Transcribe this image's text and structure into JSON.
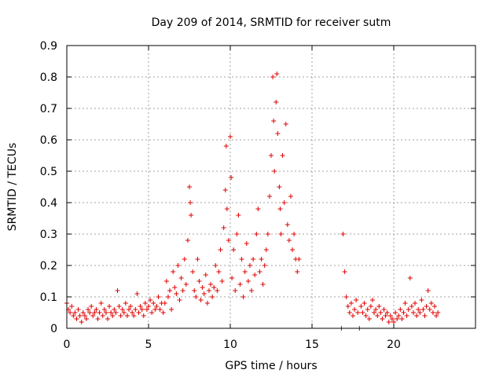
{
  "chart_data": {
    "type": "scatter",
    "title": "Day 209 of 2014, SRMTID for receiver sutm",
    "xlabel": "GPS time / hours",
    "ylabel": "SRMTID / TECUs",
    "xlim": [
      0,
      25
    ],
    "ylim": [
      0,
      0.9
    ],
    "xticks": [
      0,
      5,
      10,
      15,
      20
    ],
    "xtick_labels": [
      "0",
      "5",
      "10",
      "15",
      "20"
    ],
    "yticks": [
      0,
      0.1,
      0.2,
      0.3,
      0.4,
      0.5,
      0.6,
      0.7,
      0.8,
      0.9
    ],
    "ytick_labels": [
      "0",
      "0.1",
      "0.2",
      "0.3",
      "0.4",
      "0.5",
      "0.6",
      "0.7",
      "0.8",
      "0.9"
    ],
    "grid": true,
    "marker": "+",
    "color": "#e00000",
    "series": [
      {
        "name": "SRMTID",
        "points": [
          [
            0.0,
            0.08
          ],
          [
            0.1,
            0.06
          ],
          [
            0.2,
            0.05
          ],
          [
            0.3,
            0.07
          ],
          [
            0.4,
            0.04
          ],
          [
            0.5,
            0.05
          ],
          [
            0.6,
            0.03
          ],
          [
            0.7,
            0.06
          ],
          [
            0.8,
            0.04
          ],
          [
            0.9,
            0.02
          ],
          [
            1.0,
            0.05
          ],
          [
            1.1,
            0.04
          ],
          [
            1.2,
            0.03
          ],
          [
            1.3,
            0.06
          ],
          [
            1.4,
            0.05
          ],
          [
            1.5,
            0.07
          ],
          [
            1.6,
            0.04
          ],
          [
            1.7,
            0.05
          ],
          [
            1.8,
            0.06
          ],
          [
            1.9,
            0.03
          ],
          [
            2.0,
            0.05
          ],
          [
            2.1,
            0.08
          ],
          [
            2.2,
            0.04
          ],
          [
            2.3,
            0.06
          ],
          [
            2.4,
            0.05
          ],
          [
            2.5,
            0.03
          ],
          [
            2.6,
            0.07
          ],
          [
            2.7,
            0.05
          ],
          [
            2.8,
            0.04
          ],
          [
            2.9,
            0.06
          ],
          [
            3.0,
            0.05
          ],
          [
            3.1,
            0.12
          ],
          [
            3.2,
            0.07
          ],
          [
            3.3,
            0.04
          ],
          [
            3.4,
            0.06
          ],
          [
            3.5,
            0.05
          ],
          [
            3.6,
            0.08
          ],
          [
            3.7,
            0.04
          ],
          [
            3.8,
            0.06
          ],
          [
            3.9,
            0.07
          ],
          [
            4.0,
            0.05
          ],
          [
            4.1,
            0.04
          ],
          [
            4.2,
            0.06
          ],
          [
            4.3,
            0.11
          ],
          [
            4.4,
            0.05
          ],
          [
            4.5,
            0.07
          ],
          [
            4.6,
            0.06
          ],
          [
            4.7,
            0.04
          ],
          [
            4.8,
            0.08
          ],
          [
            4.9,
            0.06
          ],
          [
            5.0,
            0.07
          ],
          [
            5.1,
            0.09
          ],
          [
            5.2,
            0.05
          ],
          [
            5.3,
            0.08
          ],
          [
            5.4,
            0.06
          ],
          [
            5.5,
            0.07
          ],
          [
            5.6,
            0.1
          ],
          [
            5.7,
            0.06
          ],
          [
            5.8,
            0.08
          ],
          [
            5.9,
            0.05
          ],
          [
            6.0,
            0.08
          ],
          [
            6.1,
            0.15
          ],
          [
            6.2,
            0.1
          ],
          [
            6.3,
            0.12
          ],
          [
            6.4,
            0.06
          ],
          [
            6.5,
            0.18
          ],
          [
            6.6,
            0.13
          ],
          [
            6.7,
            0.11
          ],
          [
            6.8,
            0.2
          ],
          [
            6.9,
            0.09
          ],
          [
            7.0,
            0.16
          ],
          [
            7.1,
            0.12
          ],
          [
            7.2,
            0.22
          ],
          [
            7.3,
            0.14
          ],
          [
            7.4,
            0.28
          ],
          [
            7.5,
            0.45
          ],
          [
            7.55,
            0.4
          ],
          [
            7.6,
            0.36
          ],
          [
            7.7,
            0.18
          ],
          [
            7.8,
            0.12
          ],
          [
            7.9,
            0.1
          ],
          [
            8.0,
            0.22
          ],
          [
            8.1,
            0.15
          ],
          [
            8.2,
            0.09
          ],
          [
            8.3,
            0.13
          ],
          [
            8.4,
            0.11
          ],
          [
            8.5,
            0.17
          ],
          [
            8.6,
            0.08
          ],
          [
            8.7,
            0.12
          ],
          [
            8.8,
            0.14
          ],
          [
            8.9,
            0.1
          ],
          [
            9.0,
            0.13
          ],
          [
            9.1,
            0.2
          ],
          [
            9.2,
            0.12
          ],
          [
            9.3,
            0.18
          ],
          [
            9.4,
            0.25
          ],
          [
            9.5,
            0.15
          ],
          [
            9.6,
            0.32
          ],
          [
            9.7,
            0.44
          ],
          [
            9.75,
            0.58
          ],
          [
            9.8,
            0.38
          ],
          [
            9.9,
            0.28
          ],
          [
            10.0,
            0.61
          ],
          [
            10.05,
            0.48
          ],
          [
            10.1,
            0.16
          ],
          [
            10.2,
            0.25
          ],
          [
            10.3,
            0.12
          ],
          [
            10.4,
            0.3
          ],
          [
            10.5,
            0.36
          ],
          [
            10.6,
            0.14
          ],
          [
            10.7,
            0.22
          ],
          [
            10.8,
            0.1
          ],
          [
            10.9,
            0.18
          ],
          [
            11.0,
            0.27
          ],
          [
            11.1,
            0.15
          ],
          [
            11.2,
            0.2
          ],
          [
            11.3,
            0.12
          ],
          [
            11.4,
            0.22
          ],
          [
            11.5,
            0.17
          ],
          [
            11.6,
            0.3
          ],
          [
            11.7,
            0.38
          ],
          [
            11.8,
            0.18
          ],
          [
            11.9,
            0.22
          ],
          [
            12.0,
            0.14
          ],
          [
            12.1,
            0.2
          ],
          [
            12.2,
            0.25
          ],
          [
            12.3,
            0.3
          ],
          [
            12.4,
            0.42
          ],
          [
            12.5,
            0.55
          ],
          [
            12.6,
            0.8
          ],
          [
            12.65,
            0.66
          ],
          [
            12.7,
            0.5
          ],
          [
            12.8,
            0.72
          ],
          [
            12.85,
            0.81
          ],
          [
            12.9,
            0.62
          ],
          [
            13.0,
            0.45
          ],
          [
            13.05,
            0.38
          ],
          [
            13.1,
            0.3
          ],
          [
            13.2,
            0.55
          ],
          [
            13.3,
            0.4
          ],
          [
            13.4,
            0.65
          ],
          [
            13.5,
            0.33
          ],
          [
            13.6,
            0.28
          ],
          [
            13.7,
            0.42
          ],
          [
            13.8,
            0.25
          ],
          [
            13.9,
            0.3
          ],
          [
            14.0,
            0.22
          ],
          [
            14.1,
            0.18
          ],
          [
            14.2,
            0.22
          ],
          [
            16.8,
            0.0
          ],
          [
            16.9,
            0.3
          ],
          [
            17.0,
            0.18
          ],
          [
            17.1,
            0.1
          ],
          [
            17.2,
            0.07
          ],
          [
            17.3,
            0.05
          ],
          [
            17.4,
            0.08
          ],
          [
            17.5,
            0.04
          ],
          [
            17.6,
            0.06
          ],
          [
            17.7,
            0.09
          ],
          [
            17.8,
            0.05
          ],
          [
            17.9,
            0.0
          ],
          [
            18.0,
            0.07
          ],
          [
            18.1,
            0.05
          ],
          [
            18.2,
            0.08
          ],
          [
            18.3,
            0.04
          ],
          [
            18.4,
            0.06
          ],
          [
            18.5,
            0.03
          ],
          [
            18.6,
            0.07
          ],
          [
            18.7,
            0.09
          ],
          [
            18.8,
            0.05
          ],
          [
            18.9,
            0.06
          ],
          [
            19.0,
            0.04
          ],
          [
            19.1,
            0.07
          ],
          [
            19.2,
            0.05
          ],
          [
            19.3,
            0.03
          ],
          [
            19.4,
            0.06
          ],
          [
            19.5,
            0.04
          ],
          [
            19.6,
            0.05
          ],
          [
            19.7,
            0.02
          ],
          [
            19.8,
            0.04
          ],
          [
            19.9,
            0.03
          ],
          [
            20.0,
            0.02
          ],
          [
            20.1,
            0.05
          ],
          [
            20.2,
            0.03
          ],
          [
            20.3,
            0.04
          ],
          [
            20.4,
            0.06
          ],
          [
            20.5,
            0.03
          ],
          [
            20.6,
            0.05
          ],
          [
            20.7,
            0.08
          ],
          [
            20.8,
            0.04
          ],
          [
            20.9,
            0.06
          ],
          [
            21.0,
            0.16
          ],
          [
            21.1,
            0.07
          ],
          [
            21.2,
            0.05
          ],
          [
            21.3,
            0.08
          ],
          [
            21.4,
            0.04
          ],
          [
            21.5,
            0.06
          ],
          [
            21.6,
            0.05
          ],
          [
            21.7,
            0.09
          ],
          [
            21.8,
            0.06
          ],
          [
            21.9,
            0.04
          ],
          [
            22.0,
            0.07
          ],
          [
            22.1,
            0.12
          ],
          [
            22.2,
            0.06
          ],
          [
            22.3,
            0.08
          ],
          [
            22.4,
            0.05
          ],
          [
            22.5,
            0.07
          ],
          [
            22.6,
            0.04
          ],
          [
            22.7,
            0.05
          ]
        ]
      }
    ]
  }
}
